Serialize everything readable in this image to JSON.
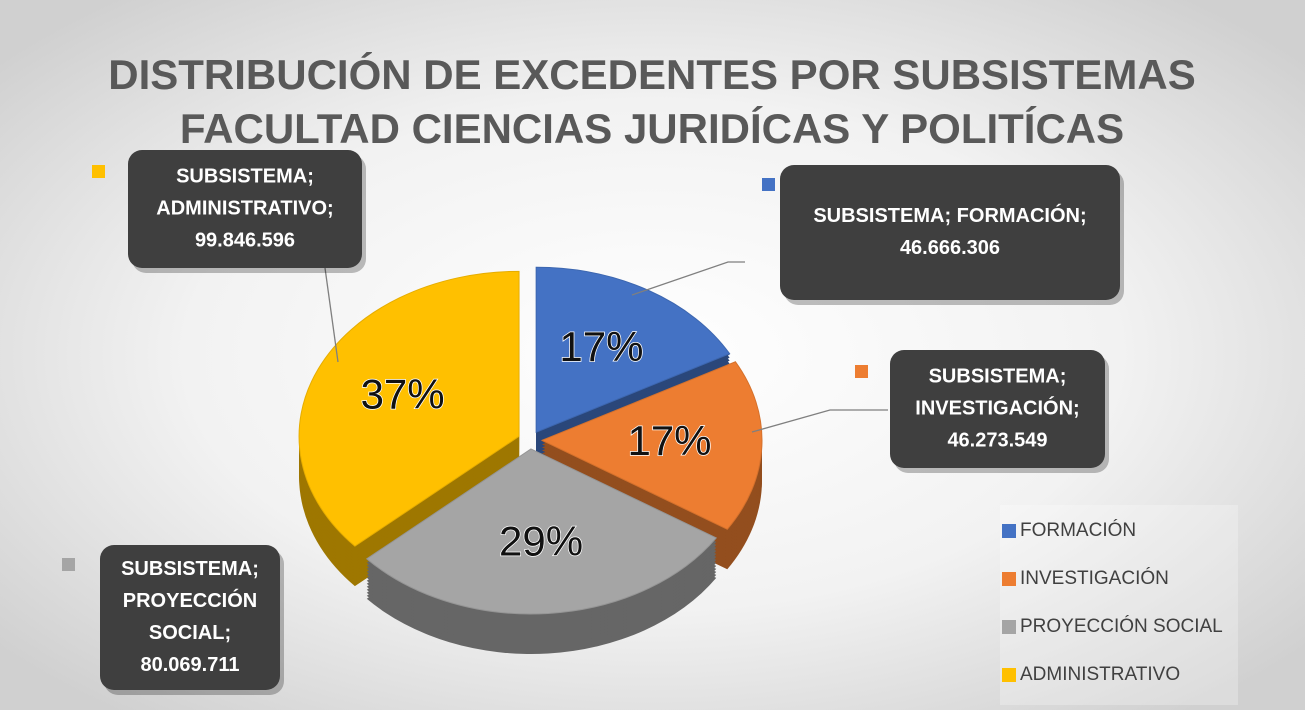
{
  "chart_data": {
    "type": "pie",
    "title_lines": [
      "DISTRIBUCIÓN DE EXCEDENTES POR SUBSISTEMAS",
      "FACULTAD CIENCIAS JURIDÍCAS Y POLITÍCAS"
    ],
    "categories": [
      "FORMACIÓN",
      "INVESTIGACIÓN",
      "PROYECCIÓN SOCIAL",
      "ADMINISTRATIVO"
    ],
    "values": [
      46666306,
      46273549,
      80069711,
      99846596
    ],
    "value_labels": [
      "46.666.306",
      "46.273.549",
      "80.069.711",
      "99.846.596"
    ],
    "percent_labels": [
      "17%",
      "17%",
      "29%",
      "37%"
    ],
    "callout_lines": [
      [
        "SUBSISTEMA; FORMACIÓN;"
      ],
      [
        "SUBSISTEMA;",
        "INVESTIGACIÓN;"
      ],
      [
        "SUBSISTEMA;",
        "PROYECCIÓN",
        "SOCIAL;"
      ],
      [
        "SUBSISTEMA;",
        "ADMINISTRATIVO;"
      ]
    ],
    "colors": [
      "#4472c4",
      "#ed7d31",
      "#a5a5a5",
      "#ffc000"
    ],
    "legend": "bottom-right"
  }
}
